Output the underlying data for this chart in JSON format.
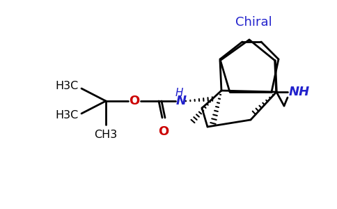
{
  "bg_color": "#ffffff",
  "black": "#000000",
  "blue": "#2222cc",
  "red": "#cc0000",
  "chiral_label": "Chiral",
  "nh_boc": "H\nN",
  "nh_ring": "NH",
  "o_ester": "O",
  "o_carbonyl": "O",
  "h3c1": "H3C",
  "h3c2": "H3C",
  "ch3": "CH3",
  "figsize": [
    4.84,
    3.0
  ],
  "dpi": 100
}
